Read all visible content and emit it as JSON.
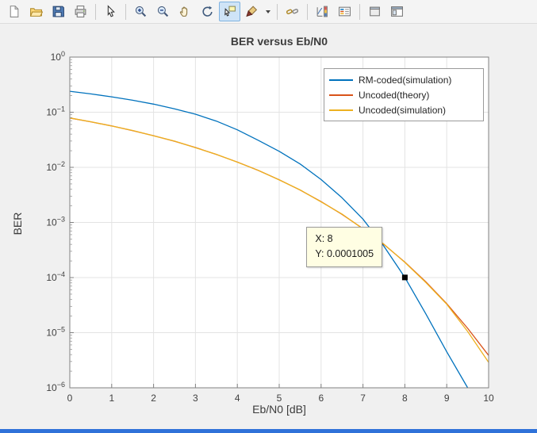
{
  "toolbar": {
    "icons": [
      "new-figure",
      "open-file",
      "save-figure",
      "print-figure",
      "edit-plot",
      "zoom-in",
      "zoom-out",
      "pan",
      "rotate-3d",
      "data-cursor",
      "brush-data",
      "link-plot",
      "insert-colorbar",
      "insert-legend",
      "hide-plot-tools",
      "show-plot-tools-dock"
    ],
    "selected_icon": "data-cursor"
  },
  "colors": {
    "figure_bg": "#f0f0f0",
    "axes_bg": "#ffffff",
    "grid": "#e3e3e3",
    "axis_box": "#808080",
    "datatip_bg": "#fffee3",
    "window_accent": "#2f72d9"
  },
  "chart_data": {
    "type": "line",
    "title": "BER versus Eb/N0",
    "xlabel": "Eb/N0 [dB]",
    "ylabel": "BER",
    "xlim": [
      0,
      10
    ],
    "x_ticks": [
      0,
      1,
      2,
      3,
      4,
      5,
      6,
      7,
      8,
      9,
      10
    ],
    "y_scale": "log",
    "ylim": [
      1e-06,
      1
    ],
    "y_tick_exponents": [
      0,
      -1,
      -2,
      -3,
      -4,
      -5,
      -6
    ],
    "grid": true,
    "legend_position": "top-right",
    "series": [
      {
        "name": "RM-coded(simulation)",
        "color": "#0072BD",
        "x": [
          0,
          0.5,
          1,
          1.5,
          2,
          2.5,
          3,
          3.5,
          4,
          4.5,
          5,
          5.5,
          6,
          6.5,
          7,
          7.5,
          8,
          8.5,
          9,
          9.5
        ],
        "y": [
          0.24,
          0.215,
          0.19,
          0.165,
          0.14,
          0.115,
          0.092,
          0.069,
          0.048,
          0.031,
          0.0195,
          0.0115,
          0.006,
          0.0028,
          0.00115,
          0.00037,
          0.0001005,
          2.2e-05,
          4.5e-06,
          1e-06
        ]
      },
      {
        "name": "Uncoded(theory)",
        "color": "#D95319",
        "x": [
          0,
          0.5,
          1,
          1.5,
          2,
          2.5,
          3,
          3.5,
          4,
          4.5,
          5,
          5.5,
          6,
          6.5,
          7,
          7.5,
          8,
          8.5,
          9,
          9.5,
          10
        ],
        "y": [
          0.0786,
          0.0669,
          0.0563,
          0.0464,
          0.0375,
          0.0297,
          0.0229,
          0.0171,
          0.0125,
          0.00878,
          0.00595,
          0.00386,
          0.00239,
          0.0014,
          0.000773,
          0.000398,
          0.000191,
          8.4e-05,
          3.36e-05,
          1.2e-05,
          3.87e-06
        ]
      },
      {
        "name": "Uncoded(simulation)",
        "color": "#EDB120",
        "x": [
          0,
          0.5,
          1,
          1.5,
          2,
          2.5,
          3,
          3.5,
          4,
          4.5,
          5,
          5.5,
          6,
          6.5,
          7,
          7.5,
          8,
          8.5,
          9,
          9.5,
          10
        ],
        "y": [
          0.0789,
          0.0672,
          0.0561,
          0.0466,
          0.0373,
          0.0299,
          0.0227,
          0.0172,
          0.0124,
          0.00881,
          0.0059,
          0.00389,
          0.00236,
          0.00142,
          0.000762,
          0.000403,
          0.000188,
          8.15e-05,
          3.29e-05,
          1.05e-05,
          2.9e-06
        ]
      }
    ],
    "datatip": {
      "x": 8,
      "y": 0.0001005,
      "x_label": "X: 8",
      "y_label": "Y: 0.0001005"
    }
  }
}
